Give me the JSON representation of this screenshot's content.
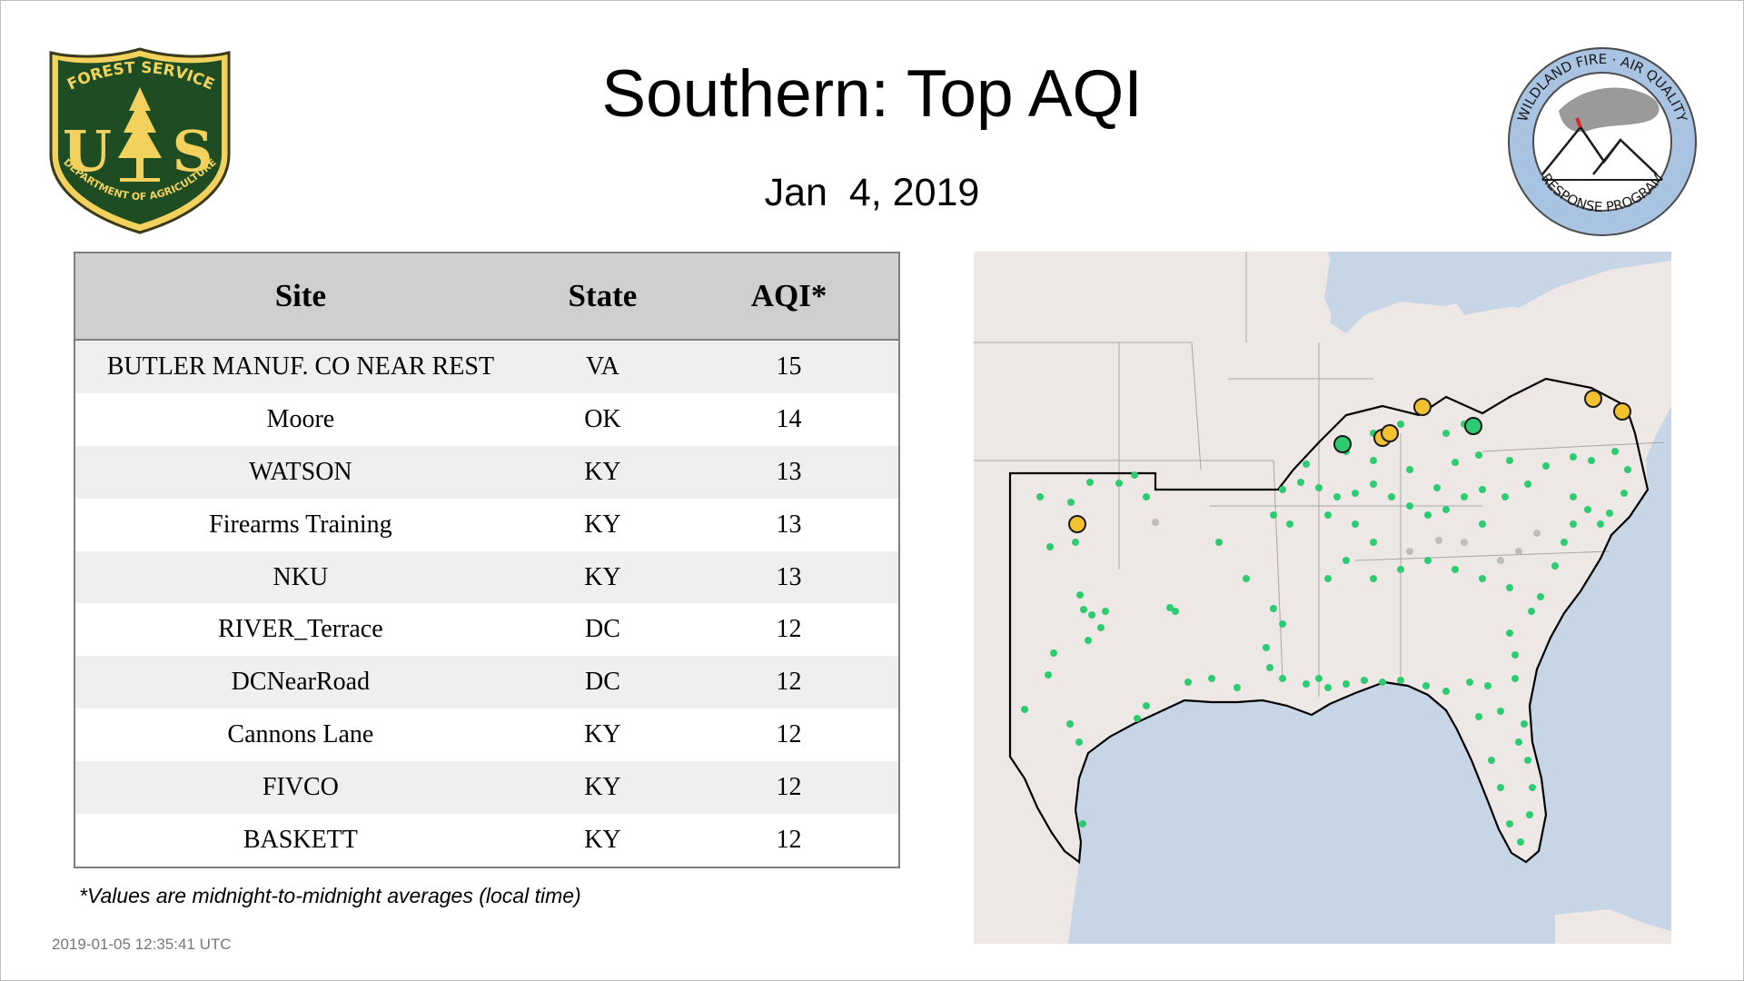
{
  "header": {
    "title": "Southern: Top AQI",
    "date": "Jan  4, 2019"
  },
  "logos": {
    "forest_service": {
      "top_text": "FOREST SERVICE",
      "letters_left": "U",
      "letters_right": "S",
      "bottom_text": "DEPARTMENT OF AGRICULTURE"
    },
    "wildland_fire": {
      "top_text": "WILDLAND FIRE · AIR QUALITY",
      "bottom_text": "RESPONSE PROGRAM"
    }
  },
  "table": {
    "headers": {
      "site": "Site",
      "state": "State",
      "aqi": "AQI*"
    },
    "rows": [
      {
        "site": "BUTLER MANUF. CO NEAR REST",
        "state": "VA",
        "aqi": "15"
      },
      {
        "site": "Moore",
        "state": "OK",
        "aqi": "14"
      },
      {
        "site": "WATSON",
        "state": "KY",
        "aqi": "13"
      },
      {
        "site": "Firearms Training",
        "state": "KY",
        "aqi": "13"
      },
      {
        "site": "NKU",
        "state": "KY",
        "aqi": "13"
      },
      {
        "site": "RIVER_Terrace",
        "state": "DC",
        "aqi": "12"
      },
      {
        "site": "DCNearRoad",
        "state": "DC",
        "aqi": "12"
      },
      {
        "site": "Cannons Lane",
        "state": "KY",
        "aqi": "12"
      },
      {
        "site": "FIVCO",
        "state": "KY",
        "aqi": "12"
      },
      {
        "site": "BASKETT",
        "state": "KY",
        "aqi": "12"
      }
    ]
  },
  "footnote": "*Values are midnight-to-midnight averages (local time)",
  "timestamp": "2019-01-05 12:35:41 UTC",
  "map": {
    "colors": {
      "water": "#c6d6e6",
      "land": "#ede8e6",
      "good_marker": "#2ecc71",
      "moderate_marker": "#f2c12e",
      "no_data_marker": "#bdbdbd",
      "region_outline": "#000000",
      "state_lines": "#a6a6a6"
    }
  }
}
